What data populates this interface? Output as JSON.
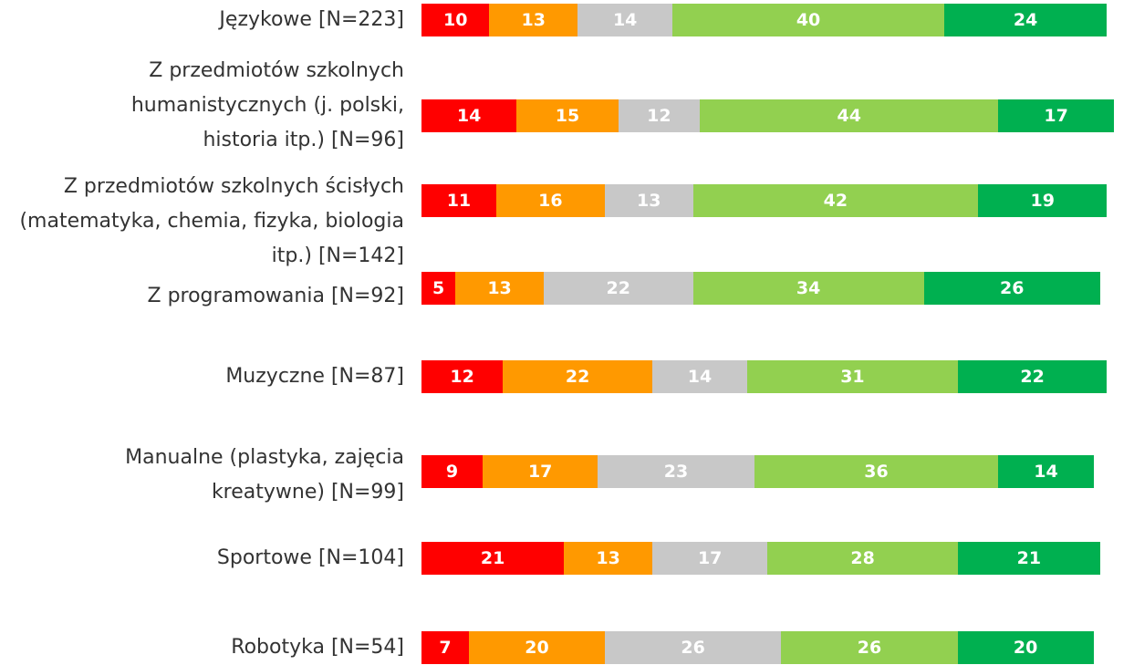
{
  "chart_data": {
    "type": "stacked-bar-horizontal",
    "categories": [
      "Językowe [N=223]",
      "Z przedmiotów szkolnych humanistycznych (j. polski, historia itp.) [N=96]",
      "Z przedmiotów szkolnych ścisłych (matematyka, chemia, fizyka, biologia itp.) [N=142]",
      "Z programowania [N=92]",
      "Muzyczne [N=87]",
      "Manualne (plastyka, zajęcia kreatywne) [N=99]",
      "Sportowe [N=104]",
      "Robotyka [N=54]"
    ],
    "series": [
      {
        "color": "#ff0000",
        "values": [
          10,
          14,
          11,
          5,
          12,
          9,
          21,
          7
        ]
      },
      {
        "color": "#ff9900",
        "values": [
          13,
          15,
          16,
          13,
          22,
          17,
          13,
          20
        ]
      },
      {
        "color": "#c8c8c8",
        "values": [
          14,
          12,
          13,
          22,
          14,
          23,
          17,
          26
        ]
      },
      {
        "color": "#92d050",
        "values": [
          40,
          44,
          42,
          34,
          31,
          36,
          28,
          26
        ]
      },
      {
        "color": "#00b050",
        "values": [
          24,
          17,
          19,
          26,
          22,
          14,
          21,
          20
        ]
      }
    ]
  }
}
